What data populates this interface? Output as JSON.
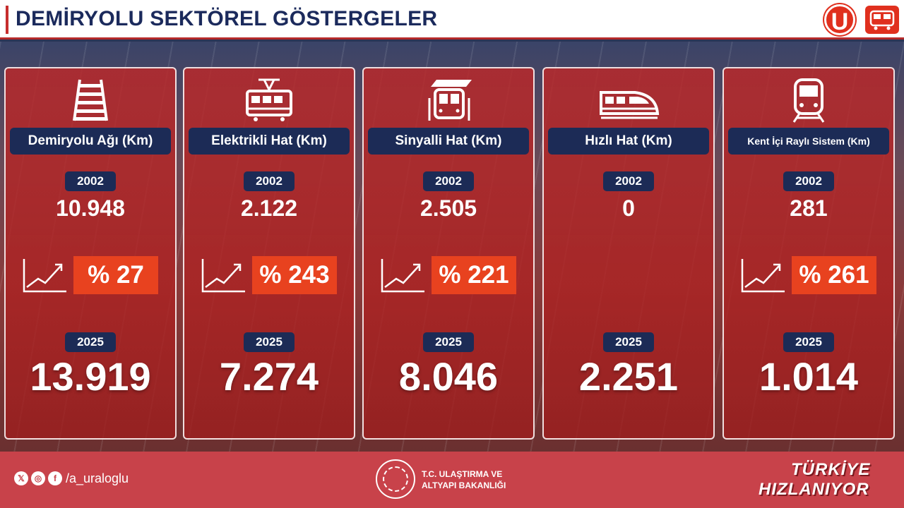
{
  "header": {
    "title": "DEMİRYOLU SEKTÖREL GÖSTERGELER",
    "logo_letter": "U"
  },
  "cards": [
    {
      "label": "Demiryolu Ağı (Km)",
      "icon": "rail-track-icon",
      "year_start": "2002",
      "value_start": "10.948",
      "growth": "% 27",
      "year_end": "2025",
      "value_end": "13.919"
    },
    {
      "label": "Elektrikli Hat (Km)",
      "icon": "electric-train-icon",
      "year_start": "2002",
      "value_start": "2.122",
      "growth": "% 243",
      "year_end": "2025",
      "value_end": "7.274"
    },
    {
      "label": "Sinyalli Hat (Km)",
      "icon": "signal-train-icon",
      "year_start": "2002",
      "value_start": "2.505",
      "growth": "% 221",
      "year_end": "2025",
      "value_end": "8.046"
    },
    {
      "label": "Hızlı Hat (Km)",
      "icon": "high-speed-train-icon",
      "year_start": "2002",
      "value_start": "0",
      "growth": "",
      "year_end": "2025",
      "value_end": "2.251"
    },
    {
      "label": "Kent İçi Raylı Sistem (Km)",
      "icon": "metro-train-icon",
      "year_start": "2002",
      "value_start": "281",
      "growth": "% 261",
      "year_end": "2025",
      "value_end": "1.014"
    }
  ],
  "footer": {
    "social_icons": [
      "x-icon",
      "instagram-icon",
      "facebook-icon"
    ],
    "handle": "/a_uraloglu",
    "ministry_line1": "T.C. ULAŞTIRMA VE",
    "ministry_line2": "ALTYAPI BAKANLIĞI",
    "slogan_line1": "TÜRKİYE",
    "slogan_line2": "HIZLANIYOR"
  }
}
